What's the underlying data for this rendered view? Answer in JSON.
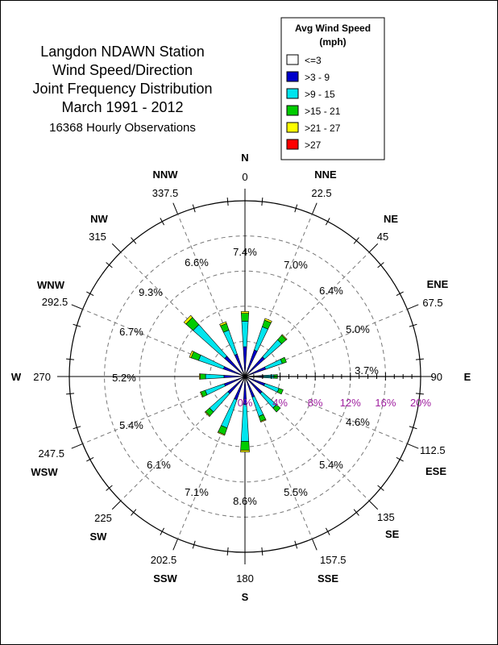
{
  "title": {
    "line1": "Langdon NDAWN Station",
    "line2": "Wind Speed/Direction",
    "line3": "Joint Frequency Distribution",
    "line4": "March 1991 - 2012",
    "subtitle": "16368 Hourly Observations"
  },
  "legend": {
    "title_line1": "Avg Wind Speed",
    "title_line2": "(mph)",
    "items": [
      {
        "label": "<=3",
        "color": "#ffffff"
      },
      {
        "label": ">3 - 9",
        "color": "#0000cc"
      },
      {
        "label": ">9 - 15",
        "color": "#00e5ee"
      },
      {
        "label": ">15 - 21",
        "color": "#00cc00"
      },
      {
        "label": ">21 - 27",
        "color": "#ffff00"
      },
      {
        "label": ">27",
        "color": "#ff0000"
      }
    ]
  },
  "chart_data": {
    "type": "wind-rose",
    "radial_max": 20,
    "radial_ticks": [
      "0%",
      "4%",
      "8%",
      "12%",
      "16%",
      "20%"
    ],
    "radial_tick_values": [
      0,
      4,
      8,
      12,
      16,
      20
    ],
    "direction_labels": [
      {
        "name": "N",
        "deg": "0"
      },
      {
        "name": "NNE",
        "deg": "22.5"
      },
      {
        "name": "NE",
        "deg": "45"
      },
      {
        "name": "ENE",
        "deg": "67.5"
      },
      {
        "name": "E",
        "deg": "90"
      },
      {
        "name": "ESE",
        "deg": "112.5"
      },
      {
        "name": "SE",
        "deg": "135"
      },
      {
        "name": "SSE",
        "deg": "157.5"
      },
      {
        "name": "S",
        "deg": "180"
      },
      {
        "name": "SSW",
        "deg": "202.5"
      },
      {
        "name": "SW",
        "deg": "225"
      },
      {
        "name": "WSW",
        "deg": "247.5"
      },
      {
        "name": "W",
        "deg": "270"
      },
      {
        "name": "WNW",
        "deg": "292.5"
      },
      {
        "name": "NW",
        "deg": "315"
      },
      {
        "name": "NNW",
        "deg": "337.5"
      }
    ],
    "speed_bins": [
      "<=3",
      ">3 - 9",
      ">9 - 15",
      ">15 - 21",
      ">21 - 27",
      ">27"
    ],
    "sectors": [
      {
        "direction": "N",
        "angle": 0,
        "total_label": "7.4%",
        "values": [
          0.2,
          3.2,
          2.9,
          0.9,
          0.2,
          0
        ]
      },
      {
        "direction": "NNE",
        "angle": 22.5,
        "total_label": "7.0%",
        "values": [
          0.2,
          3.0,
          2.8,
          0.8,
          0.2,
          0
        ]
      },
      {
        "direction": "NE",
        "angle": 45,
        "total_label": "6.4%",
        "values": [
          0.2,
          2.8,
          2.6,
          0.7,
          0.1,
          0
        ]
      },
      {
        "direction": "ENE",
        "angle": 67.5,
        "total_label": "5.0%",
        "values": [
          0.2,
          2.3,
          2.0,
          0.5,
          0,
          0
        ]
      },
      {
        "direction": "E",
        "angle": 90,
        "total_label": "3.7%",
        "values": [
          0.2,
          1.9,
          1.2,
          0.4,
          0,
          0
        ]
      },
      {
        "direction": "ESE",
        "angle": 112.5,
        "total_label": "4.6%",
        "values": [
          0.2,
          2.2,
          1.7,
          0.5,
          0,
          0
        ]
      },
      {
        "direction": "SE",
        "angle": 135,
        "total_label": "5.4%",
        "values": [
          0.2,
          2.4,
          2.2,
          0.6,
          0,
          0
        ]
      },
      {
        "direction": "SSE",
        "angle": 157.5,
        "total_label": "5.5%",
        "values": [
          0.2,
          2.3,
          2.3,
          0.6,
          0.1,
          0
        ]
      },
      {
        "direction": "S",
        "angle": 180,
        "total_label": "8.6%",
        "values": [
          0.2,
          3.0,
          4.2,
          1.0,
          0.2,
          0
        ]
      },
      {
        "direction": "SSW",
        "angle": 202.5,
        "total_label": "7.1%",
        "values": [
          0.2,
          2.6,
          3.4,
          0.8,
          0.1,
          0
        ]
      },
      {
        "direction": "SW",
        "angle": 225,
        "total_label": "6.1%",
        "values": [
          0.2,
          2.4,
          2.8,
          0.6,
          0.1,
          0
        ]
      },
      {
        "direction": "WSW",
        "angle": 247.5,
        "total_label": "5.4%",
        "values": [
          0.2,
          2.3,
          2.3,
          0.5,
          0.1,
          0
        ]
      },
      {
        "direction": "W",
        "angle": 270,
        "total_label": "5.2%",
        "values": [
          0.2,
          2.2,
          2.1,
          0.6,
          0.1,
          0
        ]
      },
      {
        "direction": "WNW",
        "angle": 292.5,
        "total_label": "6.7%",
        "values": [
          0.2,
          2.4,
          3.0,
          0.9,
          0.2,
          0
        ]
      },
      {
        "direction": "NW",
        "angle": 315,
        "total_label": "9.3%",
        "values": [
          0.2,
          2.9,
          4.8,
          1.1,
          0.3,
          0
        ]
      },
      {
        "direction": "NNW",
        "angle": 337.5,
        "total_label": "6.6%",
        "values": [
          0.2,
          2.5,
          2.9,
          0.8,
          0.2,
          0
        ]
      }
    ]
  }
}
